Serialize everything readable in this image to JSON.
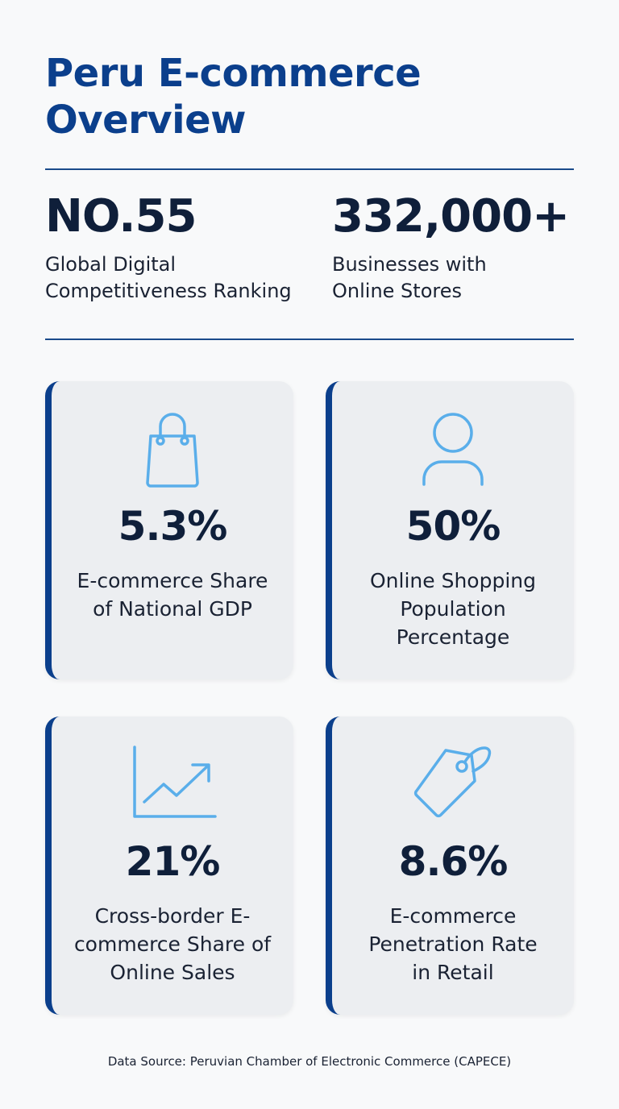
{
  "title": "Peru E-commerce Overview",
  "stats": [
    {
      "value": "NO.55",
      "label": "Global Digital Competitiveness Ranking"
    },
    {
      "value": "332,000+",
      "label": "Businesses with Online Stores"
    }
  ],
  "cards": [
    {
      "icon": "shopping-bag-icon",
      "value": "5.3%",
      "label": "E-commerce Share of National GDP"
    },
    {
      "icon": "user-icon",
      "value": "50%",
      "label": "Online Shopping Population Percentage"
    },
    {
      "icon": "trend-chart-icon",
      "value": "21%",
      "label": "Cross-border E-commerce Share of Online Sales"
    },
    {
      "icon": "price-tag-icon",
      "value": "8.6%",
      "label": "E-commerce Penetration Rate in Retail"
    }
  ],
  "source": "Data Source: Peruvian Chamber of Electronic Commerce (CAPECE)",
  "colors": {
    "title": "#0b3f8c",
    "accent": "#0b3f8c",
    "icon": "#5aaeea",
    "card": "#eceef1"
  }
}
